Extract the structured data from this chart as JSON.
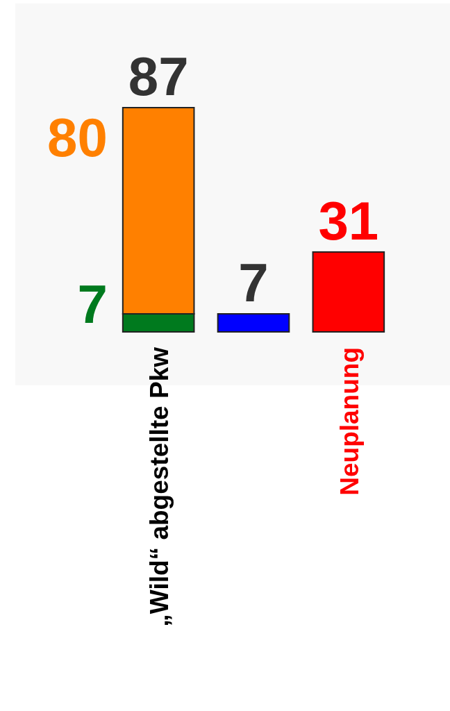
{
  "chart_data": {
    "type": "bar",
    "stacked": true,
    "categories": [
      "„Wild“ abgestellte Pkw",
      null,
      "Neuplanung"
    ],
    "series": [
      {
        "color": "#007a1e",
        "values": [
          7,
          null,
          null
        ],
        "value_labels": [
          "7",
          null,
          null
        ]
      },
      {
        "color": "#ff8000",
        "values": [
          80,
          null,
          null
        ],
        "value_labels": [
          "80",
          null,
          null
        ]
      },
      {
        "color": "#0000ff",
        "values": [
          null,
          7,
          null
        ],
        "value_labels": [
          null,
          null,
          null
        ]
      },
      {
        "color": "#ff0000",
        "values": [
          null,
          null,
          31
        ],
        "value_labels": [
          null,
          null,
          "31"
        ]
      }
    ],
    "totals": [
      "87",
      "7",
      null
    ]
  }
}
